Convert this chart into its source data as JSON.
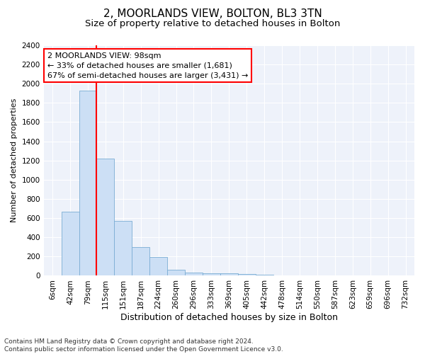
{
  "title1": "2, MOORLANDS VIEW, BOLTON, BL3 3TN",
  "title2": "Size of property relative to detached houses in Bolton",
  "xlabel": "Distribution of detached houses by size in Bolton",
  "ylabel": "Number of detached properties",
  "categories": [
    "6sqm",
    "42sqm",
    "79sqm",
    "115sqm",
    "151sqm",
    "187sqm",
    "224sqm",
    "260sqm",
    "296sqm",
    "333sqm",
    "369sqm",
    "405sqm",
    "442sqm",
    "478sqm",
    "514sqm",
    "550sqm",
    "587sqm",
    "623sqm",
    "659sqm",
    "696sqm",
    "732sqm"
  ],
  "values": [
    5,
    670,
    1930,
    1220,
    570,
    300,
    195,
    65,
    35,
    25,
    25,
    15,
    10,
    5,
    5,
    0,
    0,
    0,
    0,
    0,
    0
  ],
  "bar_color": "#ccdff5",
  "bar_edge_color": "#7aadd4",
  "annotation_line1": "2 MOORLANDS VIEW: 98sqm",
  "annotation_line2": "← 33% of detached houses are smaller (1,681)",
  "annotation_line3": "67% of semi-detached houses are larger (3,431) →",
  "annotation_box_facecolor": "white",
  "annotation_box_edgecolor": "red",
  "ylim": [
    0,
    2400
  ],
  "yticks": [
    0,
    200,
    400,
    600,
    800,
    1000,
    1200,
    1400,
    1600,
    1800,
    2000,
    2200,
    2400
  ],
  "redline_xindex": 2.5,
  "footer_line1": "Contains HM Land Registry data © Crown copyright and database right 2024.",
  "footer_line2": "Contains public sector information licensed under the Open Government Licence v3.0.",
  "plot_bg_color": "#eef2fa",
  "grid_color": "white",
  "title1_fontsize": 11,
  "title2_fontsize": 9.5,
  "xlabel_fontsize": 9,
  "ylabel_fontsize": 8,
  "tick_fontsize": 7.5,
  "annotation_fontsize": 8,
  "footer_fontsize": 6.5
}
